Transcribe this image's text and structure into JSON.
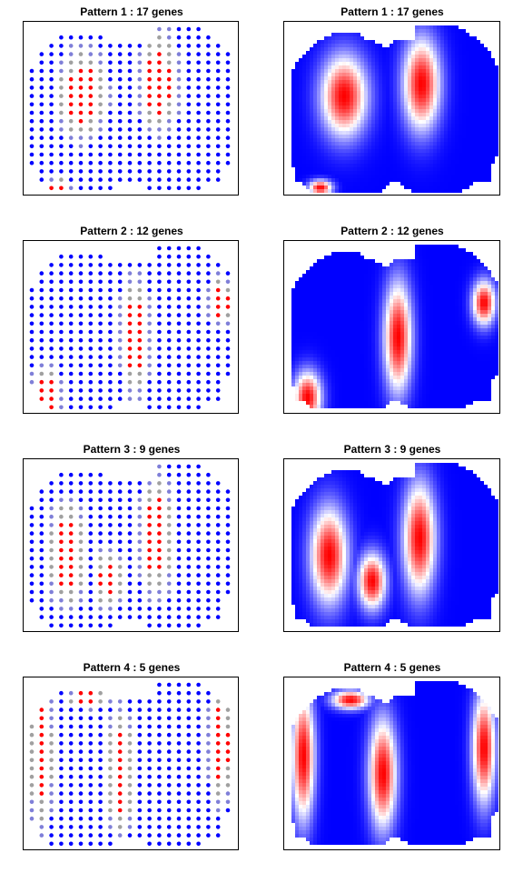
{
  "chart_data": [
    {
      "type": "scatter",
      "title": "Pattern 1 : 17 genes",
      "style": "spot-expression",
      "pattern": 1
    },
    {
      "type": "heatmap",
      "title": "Pattern 1 : 17 genes",
      "style": "smoothed-surface",
      "pattern": 1
    },
    {
      "type": "scatter",
      "title": "Pattern 2 : 12 genes",
      "style": "spot-expression",
      "pattern": 2
    },
    {
      "type": "heatmap",
      "title": "Pattern 2 : 12 genes",
      "style": "smoothed-surface",
      "pattern": 2
    },
    {
      "type": "scatter",
      "title": "Pattern 3 : 9 genes",
      "style": "spot-expression",
      "pattern": 3
    },
    {
      "type": "heatmap",
      "title": "Pattern 3 : 9 genes",
      "style": "smoothed-surface",
      "pattern": 3
    },
    {
      "type": "scatter",
      "title": "Pattern 4 : 5 genes",
      "style": "spot-expression",
      "pattern": 4
    },
    {
      "type": "heatmap",
      "title": "Pattern 4 : 5 genes",
      "style": "smoothed-surface",
      "pattern": 4
    }
  ],
  "colors": {
    "high": "#ff0000",
    "low": "#0000ff",
    "mid": "#a0a0a0",
    "background": "#ffffff"
  }
}
